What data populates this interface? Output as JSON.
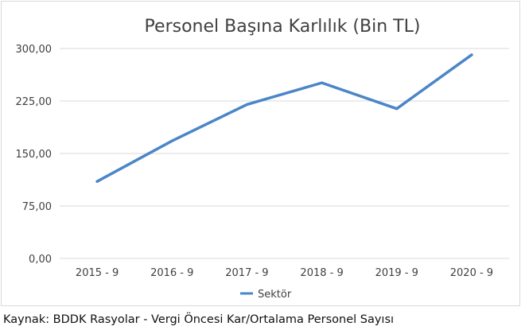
{
  "chart_data": {
    "type": "line",
    "title": "Personel Başına Karlılık (Bin TL)",
    "categories": [
      "2015 - 9",
      "2016 - 9",
      "2017 - 9",
      "2018 - 9",
      "2019 - 9",
      "2020 - 9"
    ],
    "series": [
      {
        "name": "Sektör",
        "values": [
          110,
          168,
          220,
          251,
          214,
          291
        ],
        "color": "#4a86c8"
      }
    ],
    "ylim": [
      0,
      300
    ],
    "yticks": [
      "0,00",
      "75,00",
      "150,00",
      "225,00",
      "300,00"
    ],
    "ytick_values": [
      0,
      75,
      150,
      225,
      300
    ],
    "grid": true,
    "legend": "bottom"
  },
  "source_note": "Kaynak: BDDK Rasyolar - Vergi Öncesi Kar/Ortalama Personel Sayısı"
}
